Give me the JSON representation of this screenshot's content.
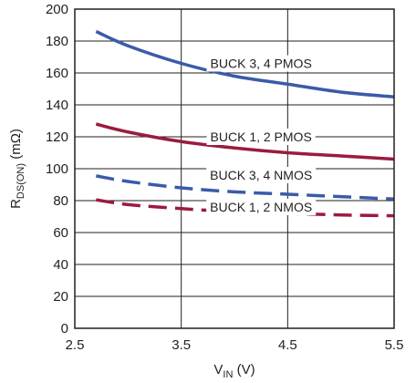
{
  "chart_data": {
    "type": "line",
    "xlabel": {
      "main": "V",
      "sub": "IN",
      "unit": " (V)"
    },
    "ylabel": {
      "main": "R",
      "sub": "DS(ON)",
      "unit": " (mΩ)"
    },
    "xlim": [
      2.5,
      5.5
    ],
    "ylim": [
      0,
      200
    ],
    "xticks": [
      "2.5",
      "3.5",
      "4.5",
      "5.5"
    ],
    "yticks": [
      "0",
      "20",
      "40",
      "60",
      "80",
      "100",
      "120",
      "140",
      "160",
      "180",
      "200"
    ],
    "grid": true,
    "colors": {
      "pmos_3_4": "#3a5ba8",
      "red": "#9b1b3f",
      "grid": "#231f20"
    },
    "series": [
      {
        "name": "BUCK 3, 4 PMOS",
        "color": "#3a5ba8",
        "dash": false,
        "x": [
          2.7,
          3.0,
          3.5,
          4.0,
          4.5,
          5.0,
          5.5
        ],
        "y": [
          186,
          177,
          166,
          158,
          153,
          148,
          145
        ]
      },
      {
        "name": "BUCK 1, 2 PMOS",
        "color": "#9b1b3f",
        "dash": false,
        "x": [
          2.7,
          3.0,
          3.5,
          4.0,
          4.5,
          5.0,
          5.5
        ],
        "y": [
          128,
          123,
          117,
          113,
          110,
          108,
          106
        ]
      },
      {
        "name": "BUCK 3, 4 NMOS",
        "color": "#3a5ba8",
        "dash": true,
        "x": [
          2.7,
          3.0,
          3.5,
          4.0,
          4.5,
          5.0,
          5.5
        ],
        "y": [
          95.5,
          92,
          88,
          85.5,
          84,
          82.5,
          81
        ]
      },
      {
        "name": "BUCK 1, 2 NMOS",
        "color": "#9b1b3f",
        "dash": true,
        "x": [
          2.7,
          3.0,
          3.5,
          4.0,
          4.5,
          5.0,
          5.5
        ],
        "y": [
          80.5,
          77.5,
          75,
          73,
          72,
          71,
          70.5
        ]
      }
    ]
  }
}
